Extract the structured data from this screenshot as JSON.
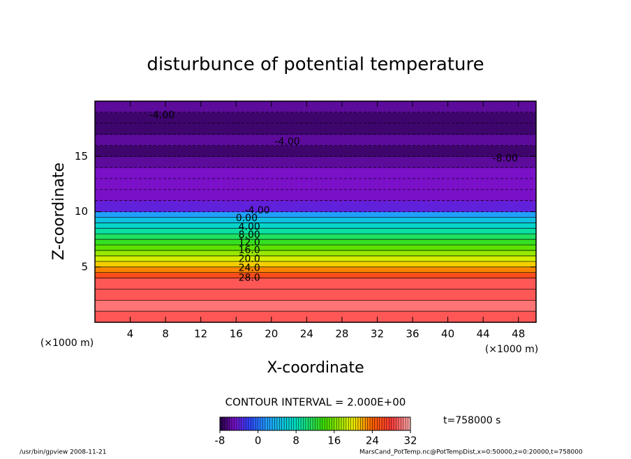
{
  "chart_data": {
    "type": "heatmap",
    "title": "disturbunce of potential temperature",
    "xlabel": "X-coordinate",
    "ylabel": "Z-coordinate",
    "x_unit_labels": [
      "(×1000 m)",
      "(×1000 m)"
    ],
    "xlim": [
      0,
      50
    ],
    "xticks": [
      4,
      8,
      12,
      16,
      20,
      24,
      28,
      32,
      36,
      40,
      44,
      48
    ],
    "ylim": [
      0,
      20
    ],
    "yticks": [
      5,
      10,
      15
    ],
    "z_edges": [
      0,
      1,
      2,
      3,
      4,
      4.5,
      5,
      5.5,
      6,
      6.5,
      7,
      7.5,
      8,
      8.5,
      9,
      9.5,
      10,
      11,
      12,
      13,
      14,
      15,
      16,
      17,
      18,
      19,
      20
    ],
    "values": [
      29,
      30,
      29,
      29,
      26,
      23,
      21,
      19,
      17,
      15,
      13,
      11,
      9,
      7,
      5,
      2,
      -4,
      -5,
      -5,
      -5,
      -6,
      -7,
      -6,
      -7,
      -7,
      -6
    ],
    "colormap": {
      "stops": [
        -8,
        -5,
        -2,
        2,
        8,
        14,
        20,
        24,
        28,
        32
      ],
      "colors": [
        "#200040",
        "#7a10c8",
        "#3040ff",
        "#20a0ff",
        "#00e0c0",
        "#40e000",
        "#f0f000",
        "#ff6000",
        "#ff3838",
        "#ffb0b0"
      ]
    },
    "colorbar": {
      "lim": [
        -8,
        32
      ],
      "ticks": [
        -8,
        0,
        8,
        16,
        24,
        32
      ]
    },
    "contour_interval_label": "CONTOUR INTERVAL = 2.000E+00",
    "annotations": [
      {
        "text": "-4.00",
        "x": 7.6,
        "y": 18.7
      },
      {
        "text": "-4.00",
        "x": 21.8,
        "y": 16.3
      },
      {
        "text": "-8.00",
        "x": 46.5,
        "y": 14.8
      },
      {
        "text": "-4.00",
        "x": 18.4,
        "y": 10.1
      },
      {
        "text": "0.00",
        "x": 17.2,
        "y": 9.4
      },
      {
        "text": "4.00",
        "x": 17.5,
        "y": 8.6
      },
      {
        "text": "8.00",
        "x": 17.5,
        "y": 7.9
      },
      {
        "text": "12.0",
        "x": 17.5,
        "y": 7.2
      },
      {
        "text": "16.0",
        "x": 17.5,
        "y": 6.5
      },
      {
        "text": "20.0",
        "x": 17.5,
        "y": 5.7
      },
      {
        "text": "24.0",
        "x": 17.5,
        "y": 4.9
      },
      {
        "text": "28.0",
        "x": 17.5,
        "y": 4.0
      }
    ],
    "time_label": "t=758000 s",
    "footer_left": "/usr/bin/gpview  2008-11-21",
    "footer_right": "MarsCand_PotTemp.nc@PotTempDist,x=0:50000,z=0:20000,t=758000"
  }
}
